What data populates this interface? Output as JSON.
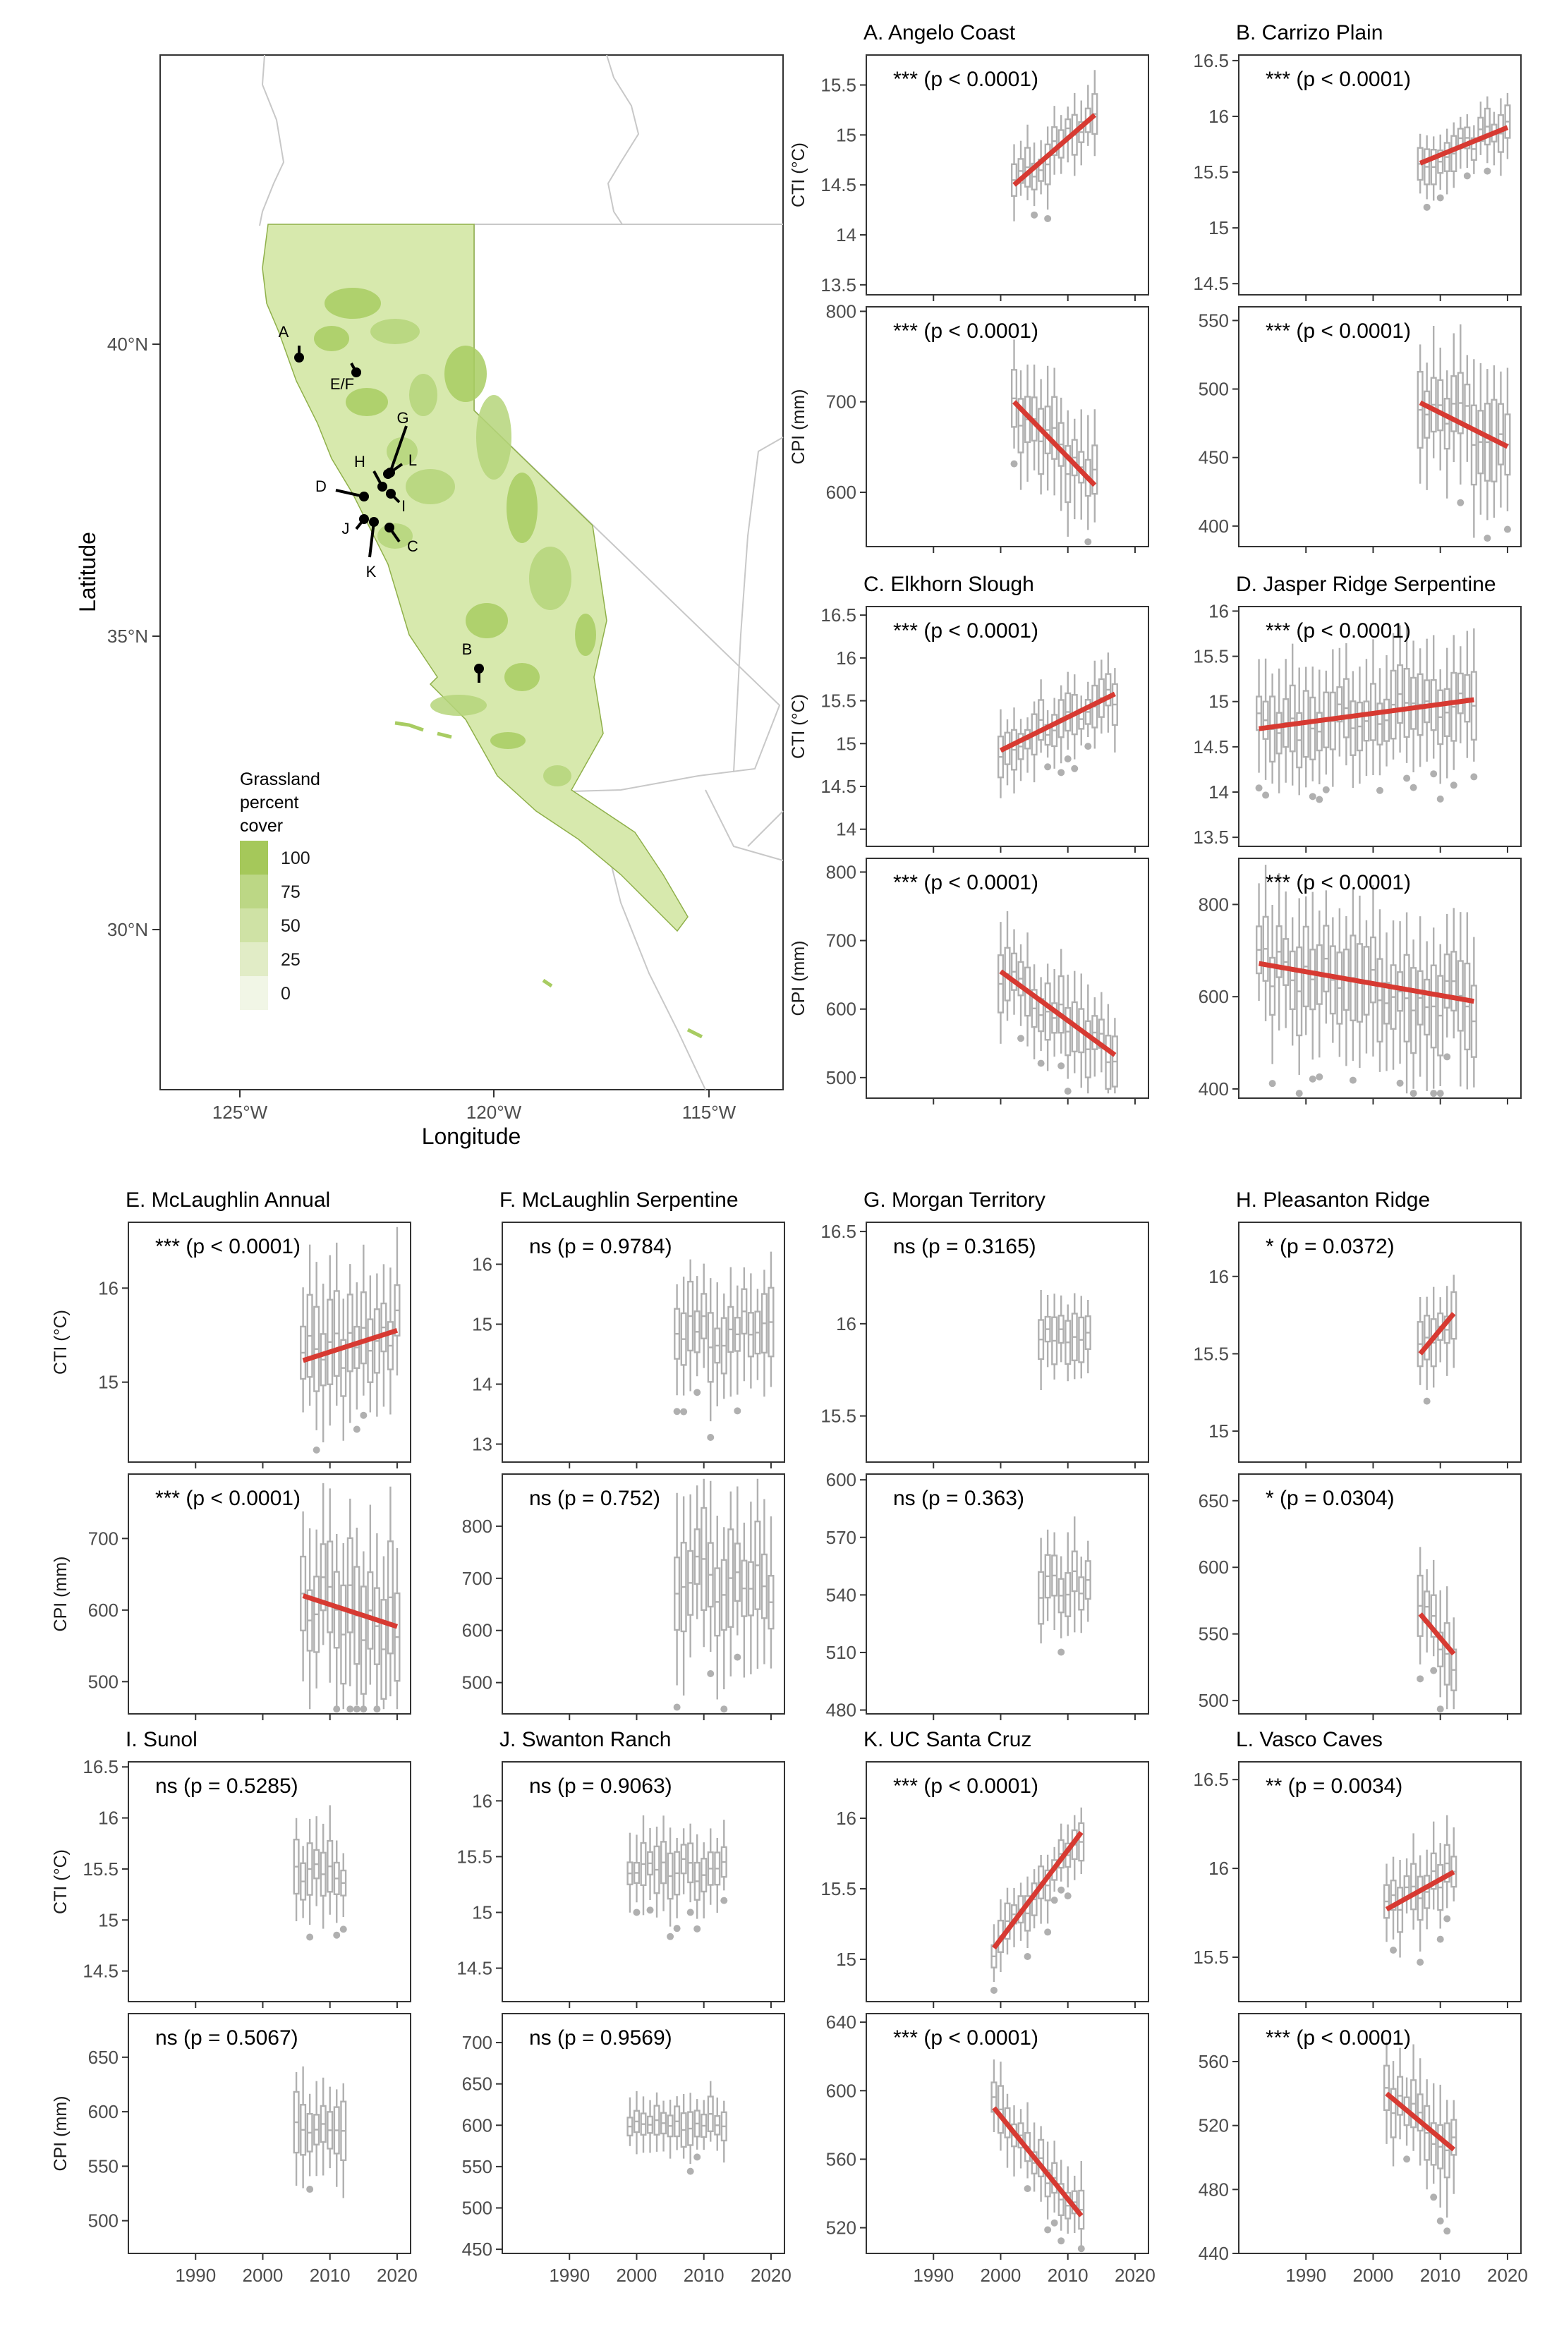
{
  "map": {
    "xlabel": "Longitude",
    "ylabel": "Latitude",
    "x_ticks": [
      "125°W",
      "120°W",
      "115°W"
    ],
    "y_ticks": [
      "40°N",
      "35°N",
      "30°N"
    ],
    "legend_title": [
      "Grassland",
      "percent",
      "cover"
    ],
    "legend_labels": [
      "100",
      "75",
      "50",
      "25",
      "0"
    ],
    "legend_colors": [
      "#a5c85a",
      "#bcd785",
      "#cfe2a5",
      "#e1ecc6",
      "#f1f6e6"
    ],
    "site_labels": [
      "A",
      "E/F",
      "G",
      "H",
      "L",
      "D",
      "I",
      "J",
      "C",
      "K",
      "B"
    ],
    "colors": {
      "grass_fill": "#d6e8a8",
      "grass_dark": "#a8cc62",
      "grass_mid": "#bcd883",
      "border": "#c8c8c8"
    }
  },
  "chart_data": [
    {
      "type": "box",
      "panel": "A",
      "title": "A. Angelo Coast",
      "ylabel": "CTI (°C)",
      "annotation": "*** (p < 0.0001)",
      "ylim": [
        13.4,
        15.8
      ],
      "yticks": [
        13.5,
        14.0,
        14.5,
        15.0,
        15.5
      ],
      "xlim": [
        1980,
        2022
      ],
      "years": [
        2002,
        2014
      ],
      "trend": [
        14.5,
        15.2
      ],
      "spread": 0.15
    },
    {
      "type": "box",
      "panel": "A",
      "title": "",
      "ylabel": "CPI (mm)",
      "annotation": "*** (p < 0.0001)",
      "ylim": [
        540,
        805
      ],
      "yticks": [
        600,
        700,
        800
      ],
      "xlim": [
        1980,
        2022
      ],
      "years": [
        2002,
        2014
      ],
      "trend": [
        700,
        608
      ],
      "spread": 28
    },
    {
      "type": "box",
      "panel": "B",
      "title": "B. Carrizo Plain",
      "ylabel": "",
      "annotation": "*** (p < 0.0001)",
      "ylim": [
        14.4,
        16.55
      ],
      "yticks": [
        14.5,
        15.0,
        15.5,
        16.0,
        16.5
      ],
      "xlim": [
        1980,
        2022
      ],
      "years": [
        2007,
        2020
      ],
      "trend": [
        15.58,
        15.9
      ],
      "spread": 0.12
    },
    {
      "type": "box",
      "panel": "B",
      "title": "",
      "ylabel": "",
      "annotation": "*** (p < 0.0001)",
      "ylim": [
        385,
        560
      ],
      "yticks": [
        400,
        450,
        500,
        550
      ],
      "xlim": [
        1980,
        2022
      ],
      "years": [
        2007,
        2020
      ],
      "trend": [
        490,
        458
      ],
      "spread": 22
    },
    {
      "type": "box",
      "panel": "C",
      "title": "C. Elkhorn Slough",
      "ylabel": "CTI (°C)",
      "annotation": "*** (p < 0.0001)",
      "ylim": [
        13.8,
        16.6
      ],
      "yticks": [
        14.0,
        14.5,
        15.0,
        15.5,
        16.0,
        16.5
      ],
      "xlim": [
        1980,
        2022
      ],
      "years": [
        2000,
        2017
      ],
      "trend": [
        14.92,
        15.58
      ],
      "spread": 0.18
    },
    {
      "type": "box",
      "panel": "C",
      "title": "",
      "ylabel": "CPI (mm)",
      "annotation": "*** (p < 0.0001)",
      "ylim": [
        470,
        820
      ],
      "yticks": [
        500,
        600,
        700,
        800
      ],
      "xlim": [
        1980,
        2022
      ],
      "years": [
        2000,
        2017
      ],
      "trend": [
        655,
        533
      ],
      "spread": 30
    },
    {
      "type": "box",
      "panel": "D",
      "title": "D. Jasper Ridge Serpentine",
      "ylabel": "",
      "annotation": "*** (p < 0.0001)",
      "ylim": [
        13.4,
        16.05
      ],
      "yticks": [
        13.5,
        14.0,
        14.5,
        15.0,
        15.5,
        16.0
      ],
      "xlim": [
        1980,
        2022
      ],
      "years": [
        1983,
        2015
      ],
      "trend": [
        14.7,
        15.02
      ],
      "spread": 0.28
    },
    {
      "type": "box",
      "panel": "D",
      "title": "",
      "ylabel": "",
      "annotation": "*** (p < 0.0001)",
      "ylim": [
        380,
        900
      ],
      "yticks": [
        400,
        600,
        800
      ],
      "xlim": [
        1980,
        2022
      ],
      "years": [
        1983,
        2015
      ],
      "trend": [
        672,
        590
      ],
      "spread": 70
    },
    {
      "type": "box",
      "panel": "E",
      "title": "E. McLaughlin Annual",
      "ylabel": "CTI (°C)",
      "annotation": "*** (p < 0.0001)",
      "ylim": [
        14.15,
        16.7
      ],
      "yticks": [
        15,
        16
      ],
      "xlim": [
        1980,
        2022
      ],
      "years": [
        2006,
        2020
      ],
      "trend": [
        15.23,
        15.55
      ],
      "spread": 0.35
    },
    {
      "type": "box",
      "panel": "E",
      "title": "",
      "ylabel": "CPI (mm)",
      "annotation": "*** (p < 0.0001)",
      "ylim": [
        455,
        790
      ],
      "yticks": [
        500,
        600,
        700
      ],
      "xlim": [
        1980,
        2022
      ],
      "years": [
        2006,
        2020
      ],
      "trend": [
        620,
        577
      ],
      "spread": 60
    },
    {
      "type": "box",
      "panel": "F",
      "title": "F. McLaughlin Serpentine",
      "ylabel": "",
      "annotation": "ns (p = 0.9784)",
      "ylim": [
        12.7,
        16.7
      ],
      "yticks": [
        13,
        14,
        15,
        16
      ],
      "xlim": [
        1980,
        2022
      ],
      "years": [
        2006,
        2020
      ],
      "trend": null,
      "spread": 0.45
    },
    {
      "type": "box",
      "panel": "F",
      "title": "",
      "ylabel": "",
      "annotation": "ns (p = 0.752)",
      "ylim": [
        440,
        900
      ],
      "yticks": [
        500,
        600,
        700,
        800
      ],
      "xlim": [
        1980,
        2022
      ],
      "years": [
        2006,
        2020
      ],
      "trend": null,
      "spread": 70
    },
    {
      "type": "box",
      "panel": "G",
      "title": "G. Morgan Territory",
      "ylabel": "",
      "annotation": "ns (p = 0.3165)",
      "ylim": [
        15.25,
        16.55
      ],
      "yticks": [
        15.5,
        16.0,
        16.5
      ],
      "xlim": [
        1980,
        2022
      ],
      "years": [
        2006,
        2013
      ],
      "trend": null,
      "spread": 0.1
    },
    {
      "type": "box",
      "panel": "G",
      "title": "",
      "ylabel": "",
      "annotation": "ns (p = 0.363)",
      "ylim": [
        478,
        603
      ],
      "yticks": [
        480,
        510,
        540,
        570,
        600
      ],
      "xlim": [
        1980,
        2022
      ],
      "years": [
        2006,
        2013
      ],
      "trend": null,
      "spread": 12
    },
    {
      "type": "box",
      "panel": "H",
      "title": "H. Pleasanton Ridge",
      "ylabel": "",
      "annotation": "* (p = 0.0372)",
      "ylim": [
        14.8,
        16.35
      ],
      "yticks": [
        15.0,
        15.5,
        16.0
      ],
      "xlim": [
        1980,
        2022
      ],
      "years": [
        2007,
        2012
      ],
      "trend": [
        15.5,
        15.76
      ],
      "spread": 0.12
    },
    {
      "type": "box",
      "panel": "H",
      "title": "",
      "ylabel": "",
      "annotation": "* (p = 0.0304)",
      "ylim": [
        490,
        670
      ],
      "yticks": [
        500,
        550,
        600,
        650
      ],
      "xlim": [
        1980,
        2022
      ],
      "years": [
        2007,
        2012
      ],
      "trend": [
        565,
        535
      ],
      "spread": 18
    },
    {
      "type": "box",
      "panel": "I",
      "title": "I. Sunol",
      "ylabel": "CTI (°C)",
      "annotation": "ns (p = 0.5285)",
      "ylim": [
        14.2,
        16.55
      ],
      "yticks": [
        14.5,
        15.0,
        15.5,
        16.0,
        16.5
      ],
      "xlim": [
        1980,
        2022
      ],
      "years": [
        2005,
        2012
      ],
      "trend": null,
      "spread": 0.2
    },
    {
      "type": "box",
      "panel": "I",
      "title": "",
      "ylabel": "CPI (mm)",
      "annotation": "ns (p = 0.5067)",
      "ylim": [
        470,
        690
      ],
      "yticks": [
        500,
        550,
        600,
        650
      ],
      "xlim": [
        1980,
        2022
      ],
      "years": [
        2005,
        2012
      ],
      "trend": null,
      "spread": 20
    },
    {
      "type": "box",
      "panel": "J",
      "title": "J. Swanton Ranch",
      "ylabel": "",
      "annotation": "ns (p = 0.9063)",
      "ylim": [
        14.2,
        16.35
      ],
      "yticks": [
        14.5,
        15.0,
        15.5,
        16.0
      ],
      "xlim": [
        1980,
        2022
      ],
      "years": [
        1999,
        2013
      ],
      "trend": null,
      "spread": 0.15
    },
    {
      "type": "box",
      "panel": "J",
      "title": "",
      "ylabel": "",
      "annotation": "ns (p = 0.9569)",
      "ylim": [
        445,
        735
      ],
      "yticks": [
        450,
        500,
        550,
        600,
        650,
        700
      ],
      "xlim": [
        1980,
        2022
      ],
      "years": [
        1999,
        2013
      ],
      "trend": null,
      "spread": 15
    },
    {
      "type": "box",
      "panel": "K",
      "title": "K. UC Santa Cruz",
      "ylabel": "",
      "annotation": "*** (p < 0.0001)",
      "ylim": [
        14.7,
        16.4
      ],
      "yticks": [
        15.0,
        15.5,
        16.0
      ],
      "xlim": [
        1980,
        2022
      ],
      "years": [
        1999,
        2012
      ],
      "trend": [
        15.08,
        15.9
      ],
      "spread": 0.1
    },
    {
      "type": "box",
      "panel": "K",
      "title": "",
      "ylabel": "",
      "annotation": "*** (p < 0.0001)",
      "ylim": [
        505,
        645
      ],
      "yticks": [
        520,
        560,
        600,
        640
      ],
      "xlim": [
        1980,
        2022
      ],
      "years": [
        1999,
        2012
      ],
      "trend": [
        590,
        527
      ],
      "spread": 10
    },
    {
      "type": "box",
      "panel": "L",
      "title": "L. Vasco Caves",
      "ylabel": "",
      "annotation": "** (p = 0.0034)",
      "ylim": [
        15.25,
        16.6
      ],
      "yticks": [
        15.5,
        16.0,
        16.5
      ],
      "xlim": [
        1980,
        2022
      ],
      "years": [
        2002,
        2012
      ],
      "trend": [
        15.77,
        15.98
      ],
      "spread": 0.1
    },
    {
      "type": "box",
      "panel": "L",
      "title": "",
      "ylabel": "",
      "annotation": "*** (p < 0.0001)",
      "ylim": [
        440,
        590
      ],
      "yticks": [
        440,
        480,
        520,
        560
      ],
      "xlim": [
        1980,
        2022
      ],
      "years": [
        2002,
        2012
      ],
      "trend": [
        540,
        505
      ],
      "spread": 14
    }
  ],
  "x_ticks": [
    "1990",
    "2000",
    "2010",
    "2020"
  ],
  "x_tick_values": [
    1990,
    2000,
    2010,
    2020
  ]
}
